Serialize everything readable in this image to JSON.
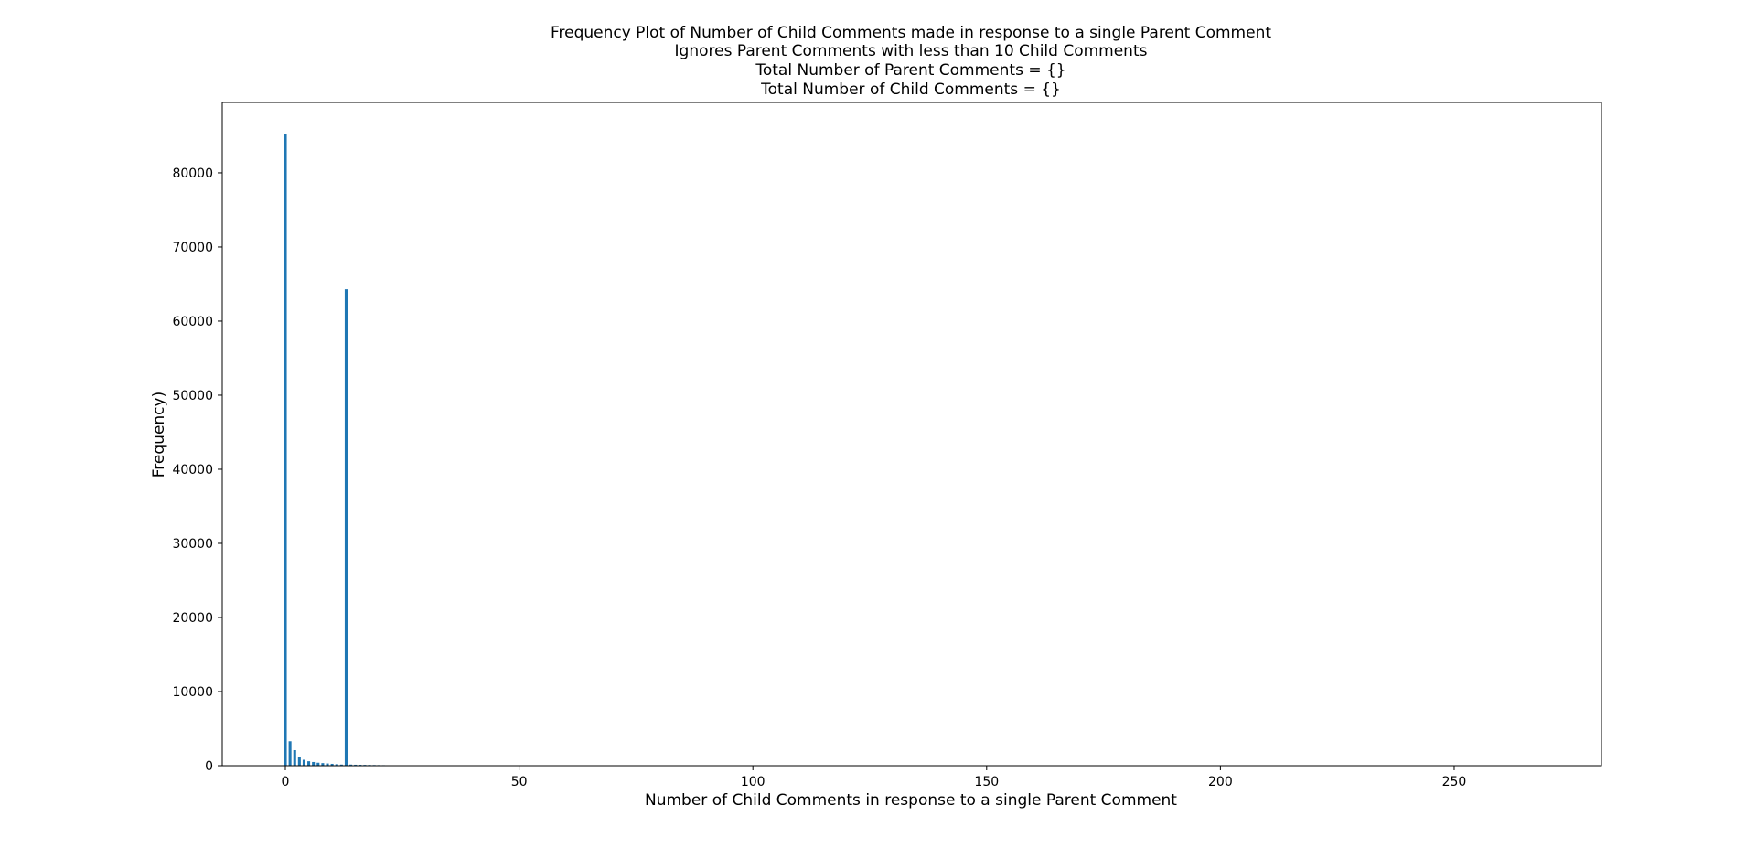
{
  "colors": {
    "bar": "#1f77b4",
    "axis": "#000000",
    "background": "#ffffff"
  },
  "chart_data": {
    "type": "bar",
    "title": [
      "Frequency Plot of Number of Child Comments made in response to a single Parent Comment",
      "Ignores Parent Comments with less than 10 Child Comments",
      "Total Number of Parent Comments = {}",
      "Total Number of Child Comments = {}"
    ],
    "xlabel": "Number of Child Comments in response to a single Parent Comment",
    "ylabel": "Frequency)",
    "xlim": [
      -13.5,
      281.5
    ],
    "ylim": [
      0,
      89500
    ],
    "xticks": [
      0,
      50,
      100,
      150,
      200,
      250
    ],
    "yticks": [
      0,
      10000,
      20000,
      30000,
      40000,
      50000,
      60000,
      70000,
      80000
    ],
    "bar_width": 0.6,
    "grid": false,
    "legend": "none",
    "x": [
      0,
      1,
      2,
      3,
      4,
      5,
      6,
      7,
      8,
      9,
      10,
      11,
      12,
      13,
      14,
      15,
      16,
      17,
      18,
      19,
      20,
      21,
      22,
      23
    ],
    "values": [
      85300,
      3300,
      2100,
      1200,
      800,
      600,
      500,
      400,
      350,
      300,
      250,
      200,
      150,
      64300,
      150,
      130,
      120,
      110,
      100,
      90,
      80,
      70,
      60,
      50
    ]
  }
}
